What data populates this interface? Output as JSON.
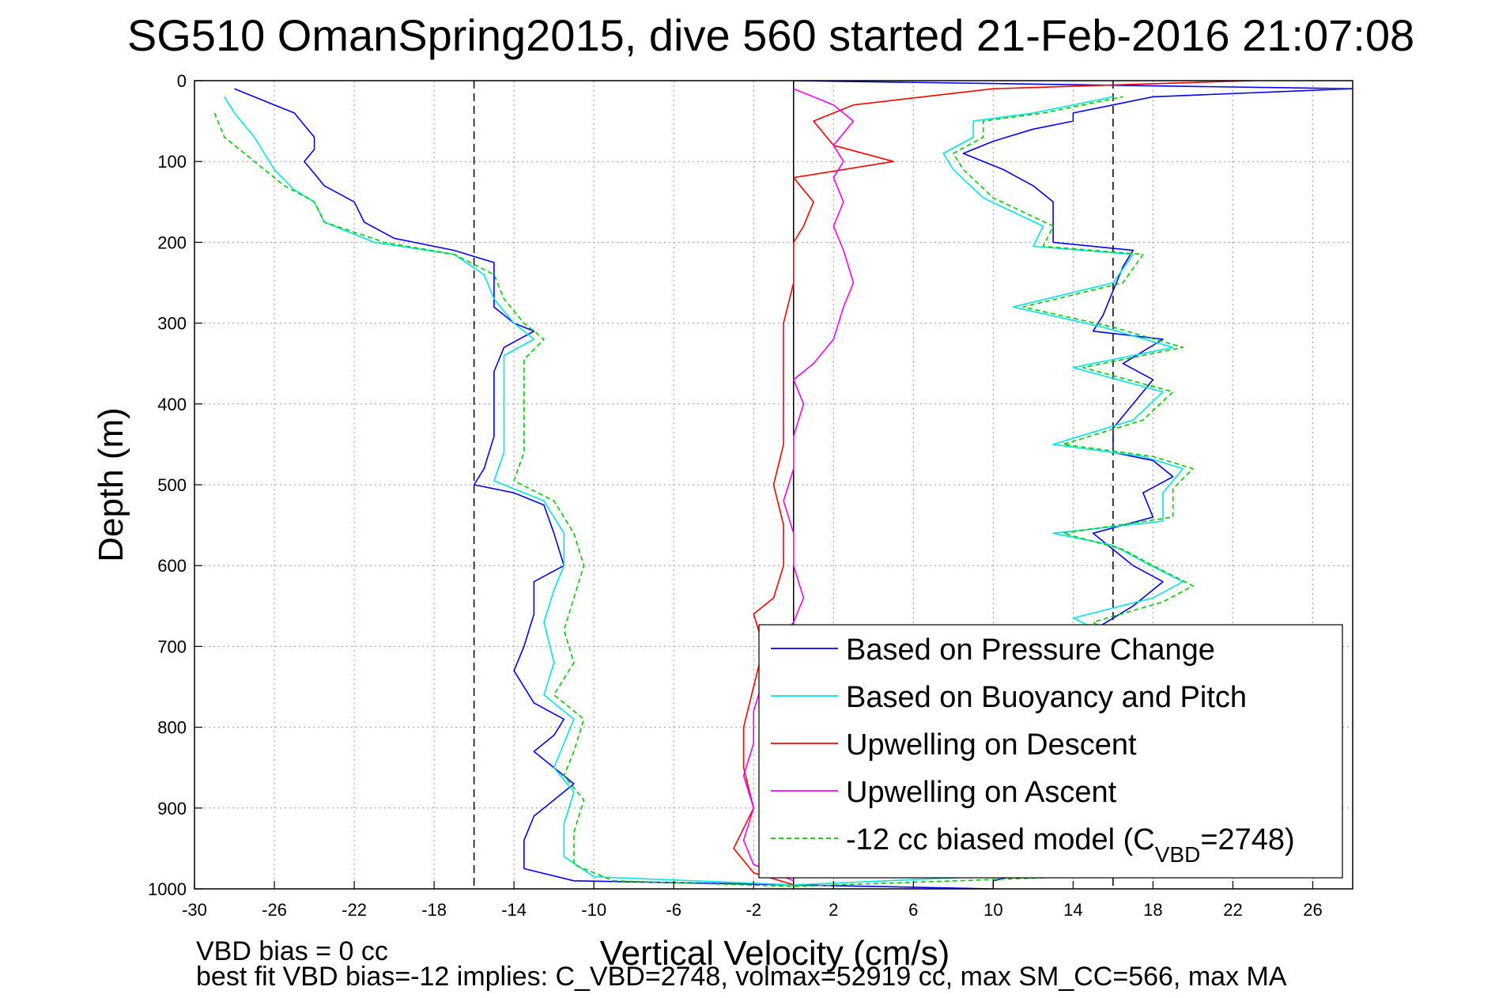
{
  "chart_data": {
    "type": "line",
    "title": "SG510 OmanSpring2015, dive 560 started 21-Feb-2016 21:07:08",
    "xlabel": "Vertical Velocity (cm/s)",
    "ylabel": "Depth (m)",
    "xlim": [
      -30,
      28
    ],
    "ylim": [
      0,
      1000
    ],
    "y_reversed": true,
    "grid": true,
    "legend_position": "bottom-right",
    "xticks": [
      -30,
      -26,
      -22,
      -18,
      -14,
      -10,
      -6,
      -2,
      2,
      6,
      10,
      14,
      18,
      22,
      26
    ],
    "yticks": [
      0,
      100,
      200,
      300,
      400,
      500,
      600,
      700,
      800,
      900,
      1000
    ],
    "reference_lines": [
      {
        "x": -16,
        "style": "dashed",
        "color": "#000000"
      },
      {
        "x": 0,
        "style": "solid",
        "color": "#000000"
      },
      {
        "x": 16,
        "style": "dashed",
        "color": "#000000"
      }
    ],
    "series": [
      {
        "name": "Based on Pressure Change",
        "color": "#0000ff",
        "style": "solid",
        "points": [
          [
            -28,
            10
          ],
          [
            -26,
            30
          ],
          [
            -25,
            40
          ],
          [
            -24.5,
            55
          ],
          [
            -24,
            70
          ],
          [
            -24,
            85
          ],
          [
            -24.5,
            100
          ],
          [
            -24,
            115
          ],
          [
            -23.5,
            130
          ],
          [
            -22,
            150
          ],
          [
            -21.5,
            175
          ],
          [
            -20,
            195
          ],
          [
            -17,
            210
          ],
          [
            -15,
            225
          ],
          [
            -15,
            250
          ],
          [
            -15,
            280
          ],
          [
            -14,
            300
          ],
          [
            -13,
            310
          ],
          [
            -14.5,
            330
          ],
          [
            -15,
            360
          ],
          [
            -15,
            400
          ],
          [
            -15,
            440
          ],
          [
            -15.5,
            480
          ],
          [
            -16,
            500
          ],
          [
            -14,
            510
          ],
          [
            -12.5,
            525
          ],
          [
            -12,
            560
          ],
          [
            -11.5,
            600
          ],
          [
            -13,
            620
          ],
          [
            -13,
            660
          ],
          [
            -13.5,
            700
          ],
          [
            -14,
            730
          ],
          [
            -13,
            770
          ],
          [
            -11.5,
            790
          ],
          [
            -12,
            810
          ],
          [
            -13,
            830
          ],
          [
            -12,
            850
          ],
          [
            -11,
            870
          ],
          [
            -12,
            890
          ],
          [
            -13,
            910
          ],
          [
            -13.5,
            940
          ],
          [
            -13.5,
            975
          ],
          [
            -11,
            990
          ],
          [
            0,
            995
          ],
          [
            10,
            1000
          ],
          [
            10,
            990
          ],
          [
            15,
            960
          ],
          [
            17,
            930
          ],
          [
            17,
            900
          ],
          [
            16.5,
            860
          ],
          [
            16,
            830
          ],
          [
            16,
            800
          ],
          [
            16.5,
            770
          ],
          [
            16.5,
            740
          ],
          [
            16.5,
            700
          ],
          [
            15,
            680
          ],
          [
            17,
            650
          ],
          [
            18.5,
            620
          ],
          [
            17,
            600
          ],
          [
            16,
            580
          ],
          [
            15,
            560
          ],
          [
            18,
            540
          ],
          [
            17.5,
            510
          ],
          [
            19,
            490
          ],
          [
            18,
            470
          ],
          [
            16,
            460
          ],
          [
            16,
            430
          ],
          [
            17,
            400
          ],
          [
            18,
            370
          ],
          [
            16.5,
            350
          ],
          [
            18.5,
            320
          ],
          [
            15,
            310
          ],
          [
            15.5,
            290
          ],
          [
            16,
            260
          ],
          [
            16.5,
            230
          ],
          [
            17,
            210
          ],
          [
            13,
            200
          ],
          [
            13,
            180
          ],
          [
            13,
            150
          ],
          [
            12,
            130
          ],
          [
            10.5,
            110
          ],
          [
            8.5,
            90
          ],
          [
            10,
            75
          ],
          [
            12,
            60
          ],
          [
            14,
            50
          ],
          [
            14,
            40
          ],
          [
            16,
            30
          ],
          [
            18,
            20
          ],
          [
            28,
            10
          ],
          [
            0,
            0
          ]
        ]
      },
      {
        "name": "Based on Buoyancy and Pitch",
        "color": "#00e5e5",
        "style": "solid",
        "points": [
          [
            -28.5,
            20
          ],
          [
            -28,
            40
          ],
          [
            -27,
            70
          ],
          [
            -26.5,
            90
          ],
          [
            -26,
            110
          ],
          [
            -25,
            135
          ],
          [
            -24,
            150
          ],
          [
            -23.5,
            175
          ],
          [
            -21,
            200
          ],
          [
            -17,
            215
          ],
          [
            -15.5,
            240
          ],
          [
            -15,
            270
          ],
          [
            -14,
            300
          ],
          [
            -13,
            320
          ],
          [
            -14.5,
            340
          ],
          [
            -14.5,
            380
          ],
          [
            -14.5,
            420
          ],
          [
            -14.5,
            460
          ],
          [
            -15,
            495
          ],
          [
            -12.5,
            520
          ],
          [
            -11.5,
            560
          ],
          [
            -11.5,
            600
          ],
          [
            -12,
            630
          ],
          [
            -12.5,
            670
          ],
          [
            -12,
            720
          ],
          [
            -12.5,
            760
          ],
          [
            -11,
            790
          ],
          [
            -11.5,
            820
          ],
          [
            -12,
            850
          ],
          [
            -11,
            880
          ],
          [
            -11.5,
            920
          ],
          [
            -11.5,
            960
          ],
          [
            -10,
            985
          ],
          [
            0,
            995
          ],
          [
            14,
            980
          ],
          [
            17.5,
            940
          ],
          [
            17.5,
            900
          ],
          [
            17,
            860
          ],
          [
            17,
            820
          ],
          [
            17,
            780
          ],
          [
            17.5,
            740
          ],
          [
            17,
            700
          ],
          [
            14,
            665
          ],
          [
            18,
            640
          ],
          [
            19.5,
            620
          ],
          [
            17.5,
            595
          ],
          [
            16,
            575
          ],
          [
            13,
            560
          ],
          [
            18.5,
            545
          ],
          [
            18.5,
            510
          ],
          [
            19.5,
            480
          ],
          [
            17.5,
            465
          ],
          [
            13,
            450
          ],
          [
            17,
            420
          ],
          [
            18.5,
            385
          ],
          [
            14,
            355
          ],
          [
            19,
            330
          ],
          [
            15.5,
            305
          ],
          [
            11,
            280
          ],
          [
            16,
            250
          ],
          [
            17,
            215
          ],
          [
            12,
            205
          ],
          [
            12.5,
            180
          ],
          [
            9.5,
            145
          ],
          [
            8,
            110
          ],
          [
            7.5,
            90
          ],
          [
            9,
            70
          ],
          [
            9,
            50
          ],
          [
            12,
            40
          ],
          [
            16,
            20
          ]
        ]
      },
      {
        "name": "Upwelling on Descent",
        "color": "#ff0000",
        "style": "solid",
        "points": [
          [
            23,
            0
          ],
          [
            10,
            10
          ],
          [
            3,
            30
          ],
          [
            1,
            50
          ],
          [
            2,
            80
          ],
          [
            5,
            100
          ],
          [
            0,
            120
          ],
          [
            1,
            150
          ],
          [
            0.5,
            180
          ],
          [
            0,
            200
          ],
          [
            0,
            250
          ],
          [
            -0.5,
            300
          ],
          [
            -0.5,
            350
          ],
          [
            -0.5,
            400
          ],
          [
            -0.5,
            450
          ],
          [
            -1,
            500
          ],
          [
            -0.5,
            550
          ],
          [
            -0.5,
            600
          ],
          [
            -1,
            640
          ],
          [
            -2,
            660
          ],
          [
            -1.5,
            700
          ],
          [
            -2,
            750
          ],
          [
            -2.5,
            800
          ],
          [
            -2.5,
            850
          ],
          [
            -2,
            900
          ],
          [
            -3,
            950
          ],
          [
            -2,
            980
          ],
          [
            0,
            995
          ]
        ]
      },
      {
        "name": "Upwelling on Ascent",
        "color": "#ff00ff",
        "style": "solid",
        "points": [
          [
            0,
            990
          ],
          [
            -2,
            970
          ],
          [
            -2.5,
            940
          ],
          [
            -2,
            900
          ],
          [
            -2.5,
            860
          ],
          [
            -2,
            820
          ],
          [
            -2,
            780
          ],
          [
            -1.5,
            740
          ],
          [
            -1,
            700
          ],
          [
            0,
            670
          ],
          [
            0.5,
            640
          ],
          [
            0,
            600
          ],
          [
            0,
            560
          ],
          [
            -0.5,
            520
          ],
          [
            0,
            480
          ],
          [
            0,
            440
          ],
          [
            0.5,
            400
          ],
          [
            0,
            370
          ],
          [
            1,
            350
          ],
          [
            2,
            320
          ],
          [
            2.5,
            280
          ],
          [
            3,
            250
          ],
          [
            2.5,
            210
          ],
          [
            2,
            180
          ],
          [
            2.5,
            150
          ],
          [
            2,
            120
          ],
          [
            2.5,
            100
          ],
          [
            2,
            80
          ],
          [
            3,
            50
          ],
          [
            2,
            30
          ],
          [
            0,
            10
          ]
        ]
      },
      {
        "name": "-12 cc biased model (C_VBD=2748)",
        "color": "#00cc00",
        "style": "dashed",
        "points": [
          [
            -29,
            40
          ],
          [
            -28.5,
            70
          ],
          [
            -27,
            100
          ],
          [
            -25.5,
            130
          ],
          [
            -24,
            150
          ],
          [
            -23.5,
            175
          ],
          [
            -20.5,
            200
          ],
          [
            -17,
            215
          ],
          [
            -15,
            240
          ],
          [
            -14.5,
            270
          ],
          [
            -13.5,
            300
          ],
          [
            -12.5,
            320
          ],
          [
            -13.5,
            345
          ],
          [
            -13.5,
            380
          ],
          [
            -13.5,
            420
          ],
          [
            -13.5,
            460
          ],
          [
            -14,
            495
          ],
          [
            -12,
            520
          ],
          [
            -11,
            560
          ],
          [
            -10.5,
            600
          ],
          [
            -11,
            640
          ],
          [
            -11.5,
            680
          ],
          [
            -11,
            720
          ],
          [
            -12,
            760
          ],
          [
            -10.5,
            790
          ],
          [
            -11,
            830
          ],
          [
            -11.5,
            860
          ],
          [
            -10.5,
            890
          ],
          [
            -11,
            930
          ],
          [
            -11,
            970
          ],
          [
            -9,
            990
          ],
          [
            0,
            997
          ],
          [
            14,
            985
          ],
          [
            18,
            950
          ],
          [
            18,
            910
          ],
          [
            17.5,
            870
          ],
          [
            17.5,
            830
          ],
          [
            17.5,
            790
          ],
          [
            18,
            750
          ],
          [
            17.5,
            710
          ],
          [
            15,
            670
          ],
          [
            18.5,
            645
          ],
          [
            20,
            625
          ],
          [
            18,
            600
          ],
          [
            16.5,
            580
          ],
          [
            13.5,
            560
          ],
          [
            19,
            540
          ],
          [
            19,
            505
          ],
          [
            20,
            480
          ],
          [
            18,
            465
          ],
          [
            13.5,
            450
          ],
          [
            17.5,
            420
          ],
          [
            19,
            385
          ],
          [
            14.5,
            355
          ],
          [
            19.5,
            330
          ],
          [
            16,
            305
          ],
          [
            11.5,
            280
          ],
          [
            16.5,
            250
          ],
          [
            17.5,
            215
          ],
          [
            12.5,
            205
          ],
          [
            13,
            180
          ],
          [
            10,
            145
          ],
          [
            8.5,
            110
          ],
          [
            8,
            90
          ],
          [
            9.5,
            70
          ],
          [
            9.5,
            50
          ],
          [
            12.5,
            40
          ],
          [
            16.5,
            20
          ]
        ]
      }
    ],
    "footer_lines": [
      "VBD bias = 0 cc",
      "best fit VBD bias=-12 implies: C_VBD=2748, volmax=52919 cc, max SM_CC=566, max MA"
    ]
  }
}
